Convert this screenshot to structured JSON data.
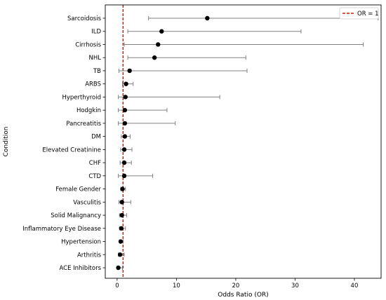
{
  "chart_data": {
    "type": "scatter",
    "subtype": "forest-plot",
    "title": "",
    "xlabel": "Odds Ratio (OR)",
    "ylabel": "Condition",
    "xlim": [
      -2,
      44.5
    ],
    "xticks": [
      0,
      10,
      20,
      30,
      40
    ],
    "grid": false,
    "reference_line": {
      "x": 1,
      "label": "OR = 1",
      "color": "#cc2200",
      "style": "dashed"
    },
    "legend": {
      "placement": "top-right",
      "entries": [
        "OR = 1"
      ]
    },
    "point_color": "#000000",
    "errorbar_color": "#808080",
    "rows": [
      {
        "label": "Sarcoidosis",
        "or": 15.2,
        "lower": 5.3,
        "upper": 44.0
      },
      {
        "label": "ILD",
        "or": 7.5,
        "lower": 1.8,
        "upper": 31.0
      },
      {
        "label": "Cirrhosis",
        "or": 6.9,
        "lower": 1.2,
        "upper": 41.5
      },
      {
        "label": "NHL",
        "or": 6.3,
        "lower": 1.8,
        "upper": 21.7
      },
      {
        "label": "TB",
        "or": 2.1,
        "lower": 0.3,
        "upper": 21.9
      },
      {
        "label": "ARBS",
        "or": 1.5,
        "lower": 0.9,
        "upper": 2.7
      },
      {
        "label": "Hyperthyroid",
        "or": 1.4,
        "lower": 0.2,
        "upper": 17.3
      },
      {
        "label": "Hodgkin",
        "or": 1.3,
        "lower": 0.2,
        "upper": 8.4
      },
      {
        "label": "Pancreatitis",
        "or": 1.3,
        "lower": 0.2,
        "upper": 9.8
      },
      {
        "label": "DM",
        "or": 1.3,
        "lower": 0.7,
        "upper": 2.2
      },
      {
        "label": "Elevated Creatinine",
        "or": 1.2,
        "lower": 0.6,
        "upper": 2.5
      },
      {
        "label": "CHF",
        "or": 1.2,
        "lower": 0.5,
        "upper": 2.4
      },
      {
        "label": "CTD",
        "or": 1.2,
        "lower": 0.2,
        "upper": 6.0
      },
      {
        "label": "Female Gender",
        "or": 0.9,
        "lower": 0.6,
        "upper": 1.4
      },
      {
        "label": "Vasculitis",
        "or": 0.8,
        "lower": 0.3,
        "upper": 2.3
      },
      {
        "label": "Solid Malignancy",
        "or": 0.8,
        "lower": 0.4,
        "upper": 1.6
      },
      {
        "label": "Inflammatory Eye Disease",
        "or": 0.7,
        "lower": 0.4,
        "upper": 1.4
      },
      {
        "label": "Hypertension",
        "or": 0.6,
        "lower": 0.4,
        "upper": 1.0
      },
      {
        "label": "Arthritis",
        "or": 0.5,
        "lower": 0.2,
        "upper": 1.2
      },
      {
        "label": "ACE Inhibitors",
        "or": 0.2,
        "lower": 0.0,
        "upper": 0.9
      }
    ]
  }
}
